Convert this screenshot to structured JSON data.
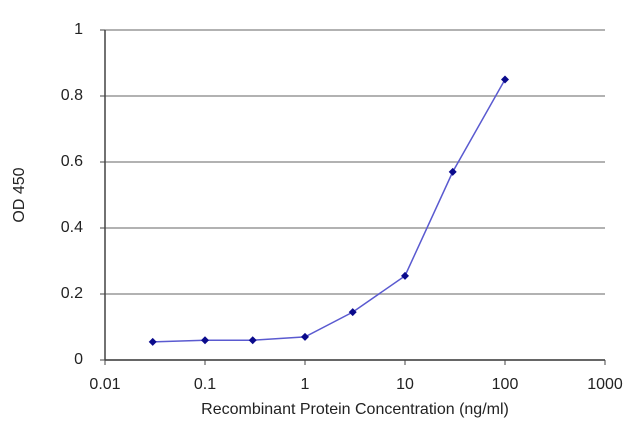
{
  "chart_data": {
    "type": "line",
    "x_label": "Recombinant Protein Concentration (ng/ml)",
    "y_label": "OD 450",
    "x": [
      0.03,
      0.1,
      0.3,
      1,
      3,
      10,
      30,
      100
    ],
    "values": [
      0.055,
      0.06,
      0.06,
      0.07,
      0.145,
      0.255,
      0.57,
      0.85
    ],
    "xscale": "log",
    "xlim": [
      0.01,
      1000
    ],
    "xticks": [
      0.01,
      0.1,
      1,
      10,
      100,
      1000
    ],
    "ylim": [
      0,
      1
    ],
    "yticks": [
      0,
      0.2,
      0.4,
      0.6,
      0.8,
      1
    ],
    "grid": true,
    "line_color": "#5a5ad0",
    "marker_color": "#0a0a8c"
  }
}
